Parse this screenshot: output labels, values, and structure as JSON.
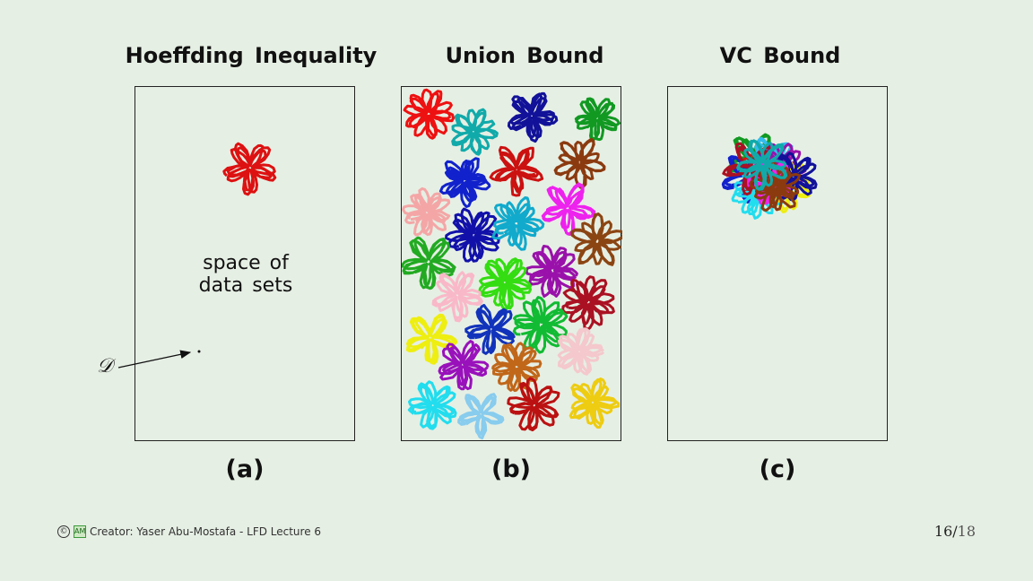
{
  "panels": [
    {
      "title": "Hoeffding Inequality",
      "caption": "(a)"
    },
    {
      "title": "Union Bound",
      "caption": "(b)"
    },
    {
      "title": "VC Bound",
      "caption": "(c)"
    }
  ],
  "space_label": {
    "line1": "space of",
    "line2": "data sets"
  },
  "d_label": "𝒟",
  "footer": {
    "copyright": "©",
    "logo": "AM",
    "text": "Creator: Yaser Abu-Mostafa - LFD Lecture 6"
  },
  "page": {
    "current": "16",
    "sep": "/",
    "total": "18"
  },
  "colors": {
    "hoeffding": "#dd1111",
    "union": [
      "#ee1111",
      "#11aaaa",
      "#111199",
      "#119922",
      "#1122cc",
      "#cc1111",
      "#8b3a0f",
      "#f4a6a6",
      "#1111aa",
      "#11aacc",
      "#ee22ee",
      "#8b4513",
      "#22aa22",
      "#9911aa",
      "#33dd11",
      "#f9b8c8",
      "#aa1122",
      "#1133bb",
      "#11bb33",
      "#eeee11",
      "#9911bb",
      "#c0671a",
      "#f4c8cc",
      "#22ddee",
      "#88ccee",
      "#bb1111",
      "#eecc11"
    ],
    "vc": [
      "#119922",
      "#dd1111",
      "#33bbee",
      "#1122cc",
      "#9911aa",
      "#eeee11",
      "#22ddee",
      "#111199",
      "#ee22ee",
      "#aa1122",
      "#8b3a0f",
      "#11aaaa"
    ]
  }
}
